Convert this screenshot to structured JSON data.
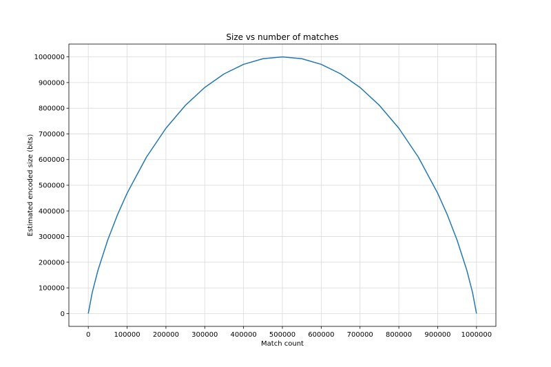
{
  "chart_data": {
    "type": "line",
    "title": "Size vs number of matches",
    "xlabel": "Match count",
    "ylabel": "Estimated encoded size (bits)",
    "xlim": [
      -50000,
      1050000
    ],
    "ylim": [
      -50000,
      1050000
    ],
    "xticks": [
      0,
      100000,
      200000,
      300000,
      400000,
      500000,
      600000,
      700000,
      800000,
      900000,
      1000000
    ],
    "xtick_labels": [
      "0",
      "100000",
      "200000",
      "300000",
      "400000",
      "500000",
      "600000",
      "700000",
      "800000",
      "900000",
      "1000000"
    ],
    "yticks": [
      0,
      100000,
      200000,
      300000,
      400000,
      500000,
      600000,
      700000,
      800000,
      900000,
      1000000
    ],
    "ytick_labels": [
      "0",
      "100000",
      "200000",
      "300000",
      "400000",
      "500000",
      "600000",
      "700000",
      "800000",
      "900000",
      "1000000"
    ],
    "grid": true,
    "series": [
      {
        "color": "#1f77b4",
        "x": [
          0,
          10000,
          25000,
          50000,
          75000,
          100000,
          150000,
          200000,
          250000,
          300000,
          350000,
          400000,
          450000,
          500000,
          550000,
          600000,
          650000,
          700000,
          750000,
          800000,
          850000,
          900000,
          925000,
          950000,
          975000,
          990000,
          1000000
        ],
        "y": [
          0,
          80800,
          169000,
          286000,
          384000,
          469000,
          610000,
          722000,
          811000,
          881000,
          934000,
          971000,
          993000,
          1000000,
          993000,
          971000,
          934000,
          881000,
          811000,
          722000,
          610000,
          469000,
          384000,
          286000,
          169000,
          80800,
          0
        ]
      }
    ]
  }
}
